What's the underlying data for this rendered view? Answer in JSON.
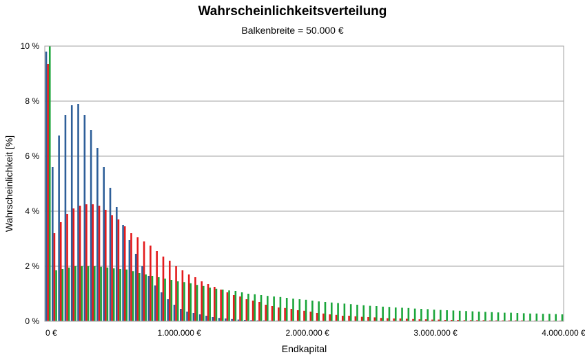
{
  "chart_data": {
    "type": "bar",
    "title": "Wahrscheinlichkeitsverteilung",
    "subtitle": "Balkenbreite = 50.000 €",
    "xlabel": "Endkapital",
    "ylabel": "Wahrscheinlichkeit [%]",
    "bin_width": 50000,
    "x_start": -50000,
    "xlim": [
      -50000,
      4000000
    ],
    "ylim": [
      0,
      10
    ],
    "x_ticks": [
      {
        "value": 0,
        "label": "0 €"
      },
      {
        "value": 1000000,
        "label": "1.000.000 €"
      },
      {
        "value": 2000000,
        "label": "2.000.000 €"
      },
      {
        "value": 3000000,
        "label": "3.000.000 €"
      },
      {
        "value": 4000000,
        "label": "4.000.000 €"
      }
    ],
    "y_ticks": [
      {
        "value": 0,
        "label": "0 %"
      },
      {
        "value": 2,
        "label": "2 %"
      },
      {
        "value": 4,
        "label": "4 %"
      },
      {
        "value": 6,
        "label": "6 %"
      },
      {
        "value": 8,
        "label": "8 %"
      },
      {
        "value": 10,
        "label": "10 %"
      }
    ],
    "grid": true,
    "legend": "none",
    "series": [
      {
        "color": "#2e5f99",
        "values": [
          9.8,
          5.6,
          6.75,
          7.5,
          7.85,
          7.9,
          7.5,
          6.95,
          6.3,
          5.6,
          4.85,
          4.15,
          3.5,
          2.95,
          2.45,
          2.0,
          1.65,
          1.3,
          1.05,
          0.8,
          0.6,
          0.45,
          0.35,
          0.3,
          0.25,
          0.2,
          0.15,
          0.12,
          0.1,
          0.08,
          0.06,
          0.05,
          0.04,
          0.03,
          0.03,
          0.02,
          0.02,
          0.02,
          0.01,
          0.01,
          0.01,
          0.01,
          0.01,
          0.01,
          0.01,
          0.01,
          0.01,
          0.01,
          0.01,
          0.01,
          0.01,
          0.01,
          0.01,
          0.01,
          0.01,
          0.01,
          0.01,
          0.01,
          0.01,
          0.01,
          0.01,
          0.01,
          0.01,
          0.01,
          0.01,
          0.01,
          0.01,
          0.01,
          0.01,
          0.01,
          0.01,
          0.01,
          0.01,
          0.01,
          0.01,
          0.01,
          0.01,
          0.01,
          0.01,
          0.01,
          0.01
        ]
      },
      {
        "color": "#e31a1c",
        "values": [
          9.35,
          3.2,
          3.6,
          3.9,
          4.1,
          4.2,
          4.25,
          4.25,
          4.2,
          4.05,
          3.85,
          3.7,
          3.45,
          3.2,
          3.05,
          2.9,
          2.75,
          2.55,
          2.35,
          2.2,
          2.0,
          1.85,
          1.7,
          1.6,
          1.45,
          1.35,
          1.25,
          1.15,
          1.05,
          0.95,
          0.9,
          0.8,
          0.75,
          0.7,
          0.6,
          0.55,
          0.5,
          0.48,
          0.45,
          0.4,
          0.38,
          0.35,
          0.3,
          0.28,
          0.25,
          0.23,
          0.2,
          0.2,
          0.18,
          0.16,
          0.15,
          0.14,
          0.12,
          0.11,
          0.1,
          0.1,
          0.09,
          0.08,
          0.07,
          0.07,
          0.06,
          0.06,
          0.05,
          0.05,
          0.05,
          0.04,
          0.04,
          0.04,
          0.04,
          0.03,
          0.03,
          0.03,
          0.03,
          0.03,
          0.03,
          0.02,
          0.02,
          0.02,
          0.02,
          0.02,
          0.02
        ]
      },
      {
        "color": "#1aa53a",
        "values": [
          10.0,
          1.85,
          1.9,
          1.95,
          2.0,
          2.0,
          2.0,
          2.0,
          1.98,
          1.95,
          1.92,
          1.9,
          1.88,
          1.82,
          1.75,
          1.7,
          1.65,
          1.6,
          1.55,
          1.5,
          1.45,
          1.42,
          1.38,
          1.32,
          1.28,
          1.22,
          1.18,
          1.15,
          1.12,
          1.1,
          1.05,
          1.0,
          0.98,
          0.95,
          0.92,
          0.9,
          0.88,
          0.85,
          0.82,
          0.8,
          0.78,
          0.75,
          0.72,
          0.7,
          0.68,
          0.66,
          0.64,
          0.62,
          0.6,
          0.58,
          0.56,
          0.55,
          0.53,
          0.52,
          0.5,
          0.49,
          0.48,
          0.46,
          0.45,
          0.44,
          0.42,
          0.41,
          0.4,
          0.39,
          0.38,
          0.37,
          0.36,
          0.35,
          0.34,
          0.33,
          0.32,
          0.31,
          0.31,
          0.3,
          0.29,
          0.28,
          0.28,
          0.27,
          0.27,
          0.26,
          0.25
        ]
      }
    ]
  }
}
